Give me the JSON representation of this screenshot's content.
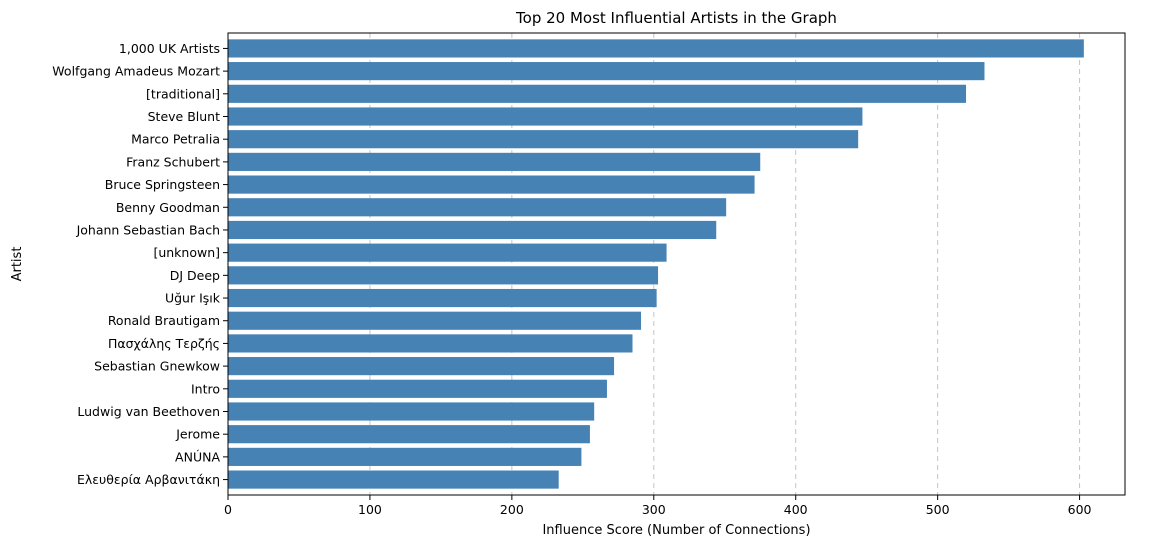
{
  "chart_data": {
    "type": "bar",
    "orientation": "horizontal",
    "title": "Top 20 Most Influential Artists in the Graph",
    "xlabel": "Influence Score (Number of Connections)",
    "ylabel": "Artist",
    "xlim": [
      0,
      632
    ],
    "xticks": [
      0,
      100,
      200,
      300,
      400,
      500,
      600
    ],
    "grid": "x-axis dashed",
    "bar_color": "#4682b4",
    "categories": [
      "1,000 UK Artists",
      "Wolfgang Amadeus Mozart",
      "[traditional]",
      "Steve Blunt",
      "Marco Petralia",
      "Franz Schubert",
      "Bruce Springsteen",
      "Benny Goodman",
      "Johann Sebastian Bach",
      "[unknown]",
      "DJ Deep",
      "Uğur Işık",
      "Ronald Brautigam",
      "Πασχάλης Τερζής",
      "Sebastian Gnewkow",
      "Intro",
      "Ludwig van Beethoven",
      "Jerome",
      "ANÚNA",
      "Ελευθερία Αρβανιτάκη"
    ],
    "values": [
      603,
      533,
      520,
      447,
      444,
      375,
      371,
      351,
      344,
      309,
      303,
      302,
      291,
      285,
      272,
      267,
      258,
      255,
      249,
      233
    ]
  }
}
